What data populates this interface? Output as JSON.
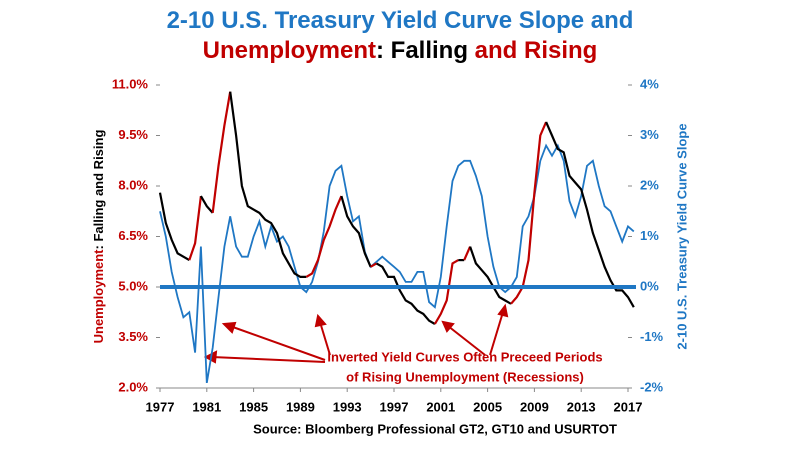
{
  "chart_data": {
    "type": "line",
    "title_lines": [
      [
        {
          "text": "2-10 U.S. Treasury Yield Curve Slope and",
          "color": "#1f77c4"
        }
      ],
      [
        {
          "text": "Unemployment",
          "color": "#c00000"
        },
        {
          "text": ": Falling ",
          "color": "#000000"
        },
        {
          "text": "and Rising",
          "color": "#c00000"
        }
      ]
    ],
    "ylabel_parts": [
      {
        "text": "Unemployment",
        "color": "#c00000"
      },
      {
        "text": ": Falling and Rising",
        "color": "#000000"
      }
    ],
    "y2label": "2-10 U.S. Treasury Yield Curve Slope",
    "annotation_lines": [
      "Inverted Yield Curves Often Preceed Periods",
      "of Rising Unemployment (Recessions)"
    ],
    "annotation_color": "#c00000",
    "source": "Source: Bloomberg Professional GT2, GT10 and USURTOT",
    "x": [
      1977.0,
      1977.5,
      1978.0,
      1978.5,
      1979.0,
      1979.5,
      1980.0,
      1980.5,
      1981.0,
      1981.5,
      1982.0,
      1982.5,
      1983.0,
      1983.5,
      1984.0,
      1984.5,
      1985.0,
      1985.5,
      1986.0,
      1986.5,
      1987.0,
      1987.5,
      1988.0,
      1988.5,
      1989.0,
      1989.5,
      1990.0,
      1990.5,
      1991.0,
      1991.5,
      1992.0,
      1992.5,
      1993.0,
      1993.5,
      1994.0,
      1994.5,
      1995.0,
      1995.5,
      1996.0,
      1996.5,
      1997.0,
      1997.5,
      1998.0,
      1998.5,
      1999.0,
      1999.5,
      2000.0,
      2000.5,
      2001.0,
      2001.5,
      2002.0,
      2002.5,
      2003.0,
      2003.5,
      2004.0,
      2004.5,
      2005.0,
      2005.5,
      2006.0,
      2006.5,
      2007.0,
      2007.5,
      2008.0,
      2008.5,
      2009.0,
      2009.5,
      2010.0,
      2010.5,
      2011.0,
      2011.5,
      2012.0,
      2012.5,
      2013.0,
      2013.5,
      2014.0,
      2014.5,
      2015.0,
      2015.5,
      2016.0,
      2016.5,
      2017.0,
      2017.5
    ],
    "series": [
      {
        "name": "Unemployment",
        "rising_color": "#c00000",
        "falling_color": "#000000",
        "values": [
          7.8,
          6.9,
          6.4,
          6.0,
          5.9,
          5.8,
          6.3,
          7.7,
          7.4,
          7.2,
          8.6,
          9.8,
          10.8,
          9.5,
          8.0,
          7.4,
          7.3,
          7.2,
          7.0,
          6.9,
          6.6,
          6.0,
          5.7,
          5.4,
          5.3,
          5.3,
          5.4,
          5.8,
          6.4,
          6.8,
          7.3,
          7.7,
          7.1,
          6.8,
          6.6,
          6.0,
          5.6,
          5.7,
          5.6,
          5.3,
          5.3,
          4.9,
          4.6,
          4.5,
          4.3,
          4.2,
          4.0,
          3.9,
          4.2,
          4.6,
          5.7,
          5.8,
          5.8,
          6.2,
          5.7,
          5.5,
          5.3,
          5.0,
          4.7,
          4.6,
          4.5,
          4.7,
          5.0,
          5.8,
          7.8,
          9.5,
          9.9,
          9.5,
          9.1,
          9.0,
          8.3,
          8.1,
          7.9,
          7.3,
          6.6,
          6.1,
          5.6,
          5.2,
          4.9,
          4.9,
          4.7,
          4.4
        ]
      },
      {
        "name": "2-10 U.S. Treasury Yield Curve Slope",
        "color": "#1f77c4",
        "axis": "y2",
        "values": [
          1.5,
          1.0,
          0.3,
          -0.2,
          -0.6,
          -0.5,
          -1.3,
          0.8,
          -1.9,
          -1.2,
          -0.2,
          0.8,
          1.4,
          0.8,
          0.6,
          0.6,
          1.0,
          1.3,
          0.8,
          1.2,
          0.9,
          1.0,
          0.8,
          0.4,
          0.0,
          -0.1,
          0.1,
          0.5,
          1.1,
          2.0,
          2.3,
          2.4,
          1.8,
          1.3,
          1.4,
          0.7,
          0.4,
          0.5,
          0.6,
          0.5,
          0.4,
          0.3,
          0.1,
          0.1,
          0.3,
          0.3,
          -0.3,
          -0.4,
          0.2,
          1.2,
          2.1,
          2.4,
          2.5,
          2.5,
          2.2,
          1.8,
          1.0,
          0.4,
          0.0,
          -0.1,
          0.0,
          0.2,
          1.2,
          1.4,
          1.8,
          2.5,
          2.8,
          2.6,
          2.8,
          2.5,
          1.7,
          1.4,
          1.8,
          2.4,
          2.5,
          2.0,
          1.6,
          1.5,
          1.2,
          0.9,
          1.2,
          1.1
        ]
      }
    ],
    "xlim": [
      1977,
      2017.5
    ],
    "xticks": [
      1977,
      1981,
      1985,
      1989,
      1993,
      1997,
      2001,
      2005,
      2009,
      2013,
      2017
    ],
    "ylim": [
      2,
      11
    ],
    "yticks": [
      {
        "value": 2,
        "label": "2.0%"
      },
      {
        "value": 3.5,
        "label": "3.5%"
      },
      {
        "value": 5,
        "label": "5.0%"
      },
      {
        "value": 6.5,
        "label": "6.5%"
      },
      {
        "value": 8,
        "label": "8.0%"
      },
      {
        "value": 9.5,
        "label": "9.5%"
      },
      {
        "value": 11,
        "label": "11.0%"
      }
    ],
    "y2lim": [
      -2,
      4
    ],
    "y2ticks": [
      {
        "value": -2,
        "label": "-2%"
      },
      {
        "value": -1,
        "label": "-1%"
      },
      {
        "value": 0,
        "label": "0%"
      },
      {
        "value": 1,
        "label": "1%"
      },
      {
        "value": 2,
        "label": "2%"
      },
      {
        "value": 3,
        "label": "3%"
      },
      {
        "value": 4,
        "label": "4%"
      }
    ],
    "ytick_color": "#c00000",
    "y2tick_color": "#1f77c4",
    "zero_line_y2": 0
  }
}
